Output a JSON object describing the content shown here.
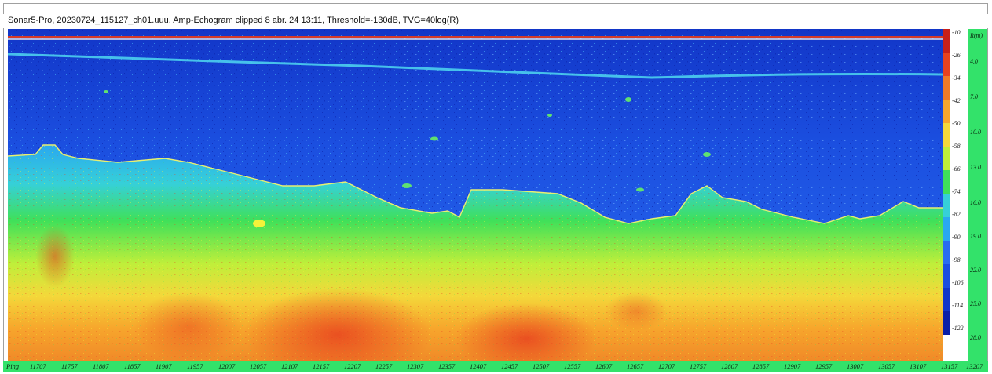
{
  "window": {
    "title": "Sonar5-Pro, 20230724_115127_ch01.uuu, Amp-Echogram clipped 8 abr. 24 13:11, Threshold=-130dB, TVG=40log(R)"
  },
  "colors": {
    "deep_blue": "#0f2fd0",
    "mid_blue": "#2a6df0",
    "cyan": "#38c8e8",
    "green": "#3fe05a",
    "yellow": "#f4f23a",
    "orange": "#f7a62c",
    "red": "#e8421f",
    "axis_green": "#33e26a",
    "bottom_line": "#e8f070"
  },
  "color_scale": {
    "labels": [
      "-10",
      "-26",
      "-34",
      "-42",
      "-50",
      "-58",
      "-66",
      "-74",
      "-82",
      "-90",
      "-98",
      "-106",
      "-114",
      "-122"
    ]
  },
  "depth_axis": {
    "unit_label": "R(m)",
    "labels": [
      "4.0",
      "7.0",
      "10.0",
      "13.0",
      "16.0",
      "19.0",
      "22.0",
      "25.0",
      "28.0"
    ]
  },
  "ping_axis": {
    "prefix": "Ping",
    "labels": [
      "11707",
      "11757",
      "11807",
      "11857",
      "11907",
      "11957",
      "12007",
      "12057",
      "12107",
      "12157",
      "12207",
      "12257",
      "12307",
      "12357",
      "12407",
      "12457",
      "12507",
      "12557",
      "12607",
      "12657",
      "12707",
      "12757",
      "12807",
      "12857",
      "12907",
      "12957",
      "13007",
      "13057",
      "13107",
      "13157",
      "13207"
    ]
  }
}
